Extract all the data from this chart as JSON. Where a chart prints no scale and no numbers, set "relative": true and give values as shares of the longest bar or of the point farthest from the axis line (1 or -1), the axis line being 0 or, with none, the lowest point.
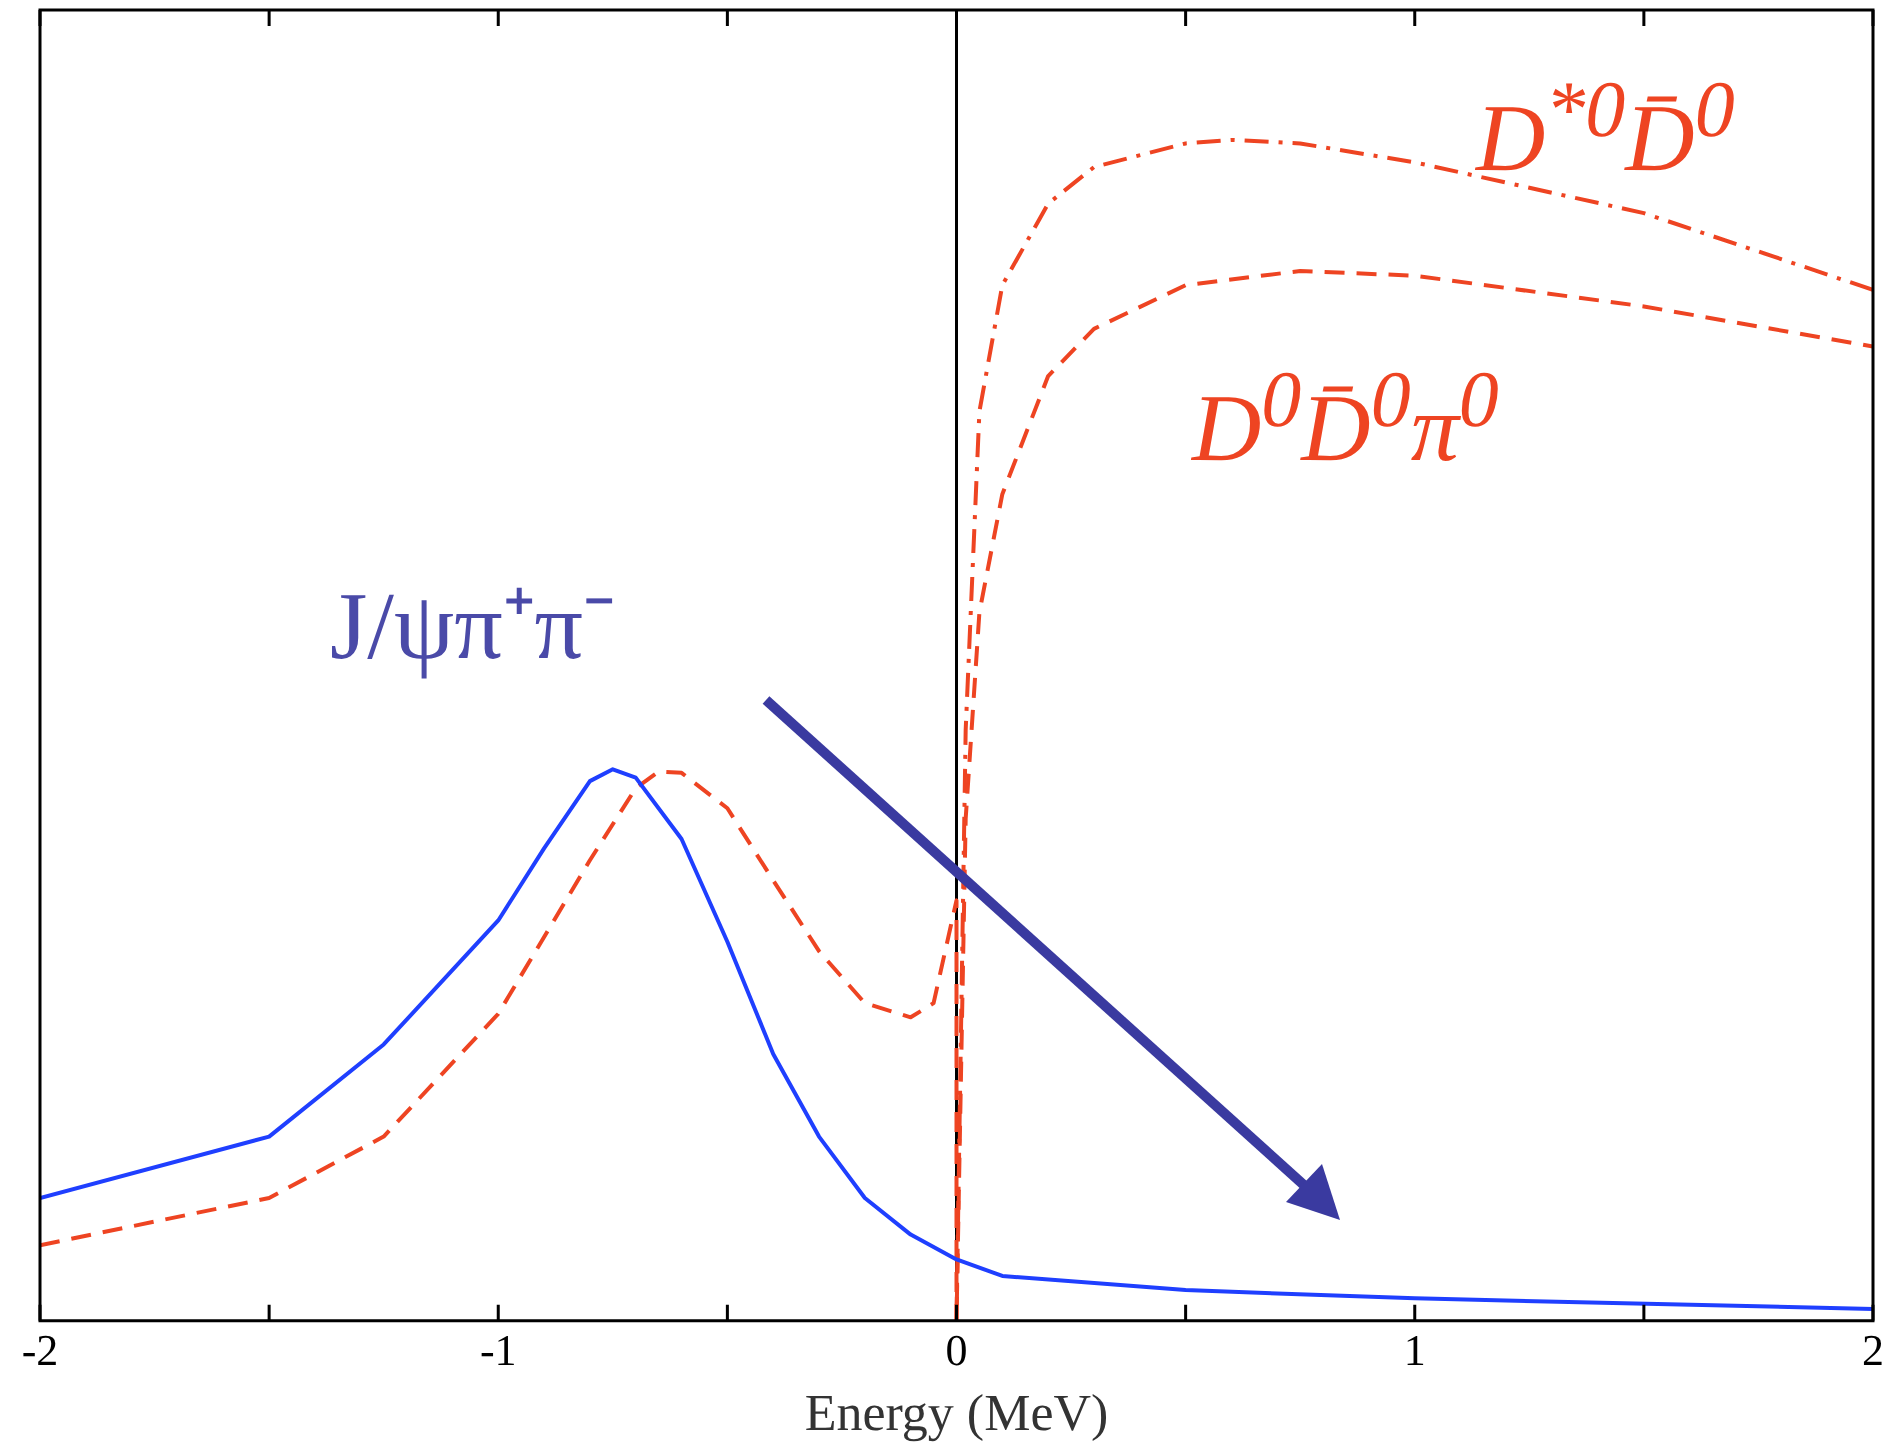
{
  "chart_data": {
    "type": "line",
    "relative": true,
    "xlabel": "Energy (MeV)",
    "xlim": [
      -2,
      2
    ],
    "xticks": [
      -2,
      {
        "value": -1.5,
        "label": null
      },
      -1,
      {
        "value": -0.5,
        "label": null
      },
      0,
      {
        "value": 0.5,
        "label": null
      },
      1,
      {
        "value": 1.5,
        "label": null
      },
      2
    ],
    "grid": false,
    "legend": false,
    "marker": "none",
    "ref_lines": [
      {
        "axis": "x",
        "value": 0,
        "color": "#000000"
      }
    ],
    "series": [
      {
        "name": "J/ψπ⁺π⁻",
        "color": "#1f3fff",
        "line_style": "solid",
        "x": [
          -2,
          -1.5,
          -1.25,
          -1,
          -0.9,
          -0.8,
          -0.75,
          -0.7,
          -0.6,
          -0.5,
          -0.4,
          -0.3,
          -0.2,
          -0.1,
          0,
          0.1,
          0.5,
          1,
          2
        ],
        "values": [
          0.104,
          0.156,
          0.234,
          0.339,
          0.4,
          0.457,
          0.467,
          0.46,
          0.408,
          0.321,
          0.226,
          0.156,
          0.104,
          0.073,
          0.052,
          0.038,
          0.026,
          0.019,
          0.01
        ]
      },
      {
        "name": "D$^{0}$D̄$^{0}$π$^{0}$",
        "color": "#ee4422",
        "line_style": "dashed",
        "x": [
          -2,
          -1.5,
          -1.25,
          -1,
          -0.8,
          -0.7,
          -0.65,
          -0.6,
          -0.5,
          -0.4,
          -0.3,
          -0.2,
          -0.1,
          -0.05,
          0,
          0,
          0.02,
          0.05,
          0.1,
          0.2,
          0.3,
          0.5,
          0.75,
          1,
          1.5,
          2
        ],
        "values": [
          0.064,
          0.104,
          0.156,
          0.26,
          0.39,
          0.451,
          0.465,
          0.464,
          0.434,
          0.373,
          0.313,
          0.269,
          0.257,
          0.269,
          0.356,
          0,
          0.425,
          0.6,
          0.7,
          0.8,
          0.84,
          0.877,
          0.889,
          0.885,
          0.859,
          0.825
        ]
      },
      {
        "name": "D$^{*0}$D̄$^{0}$",
        "color": "#ee4422",
        "line_style": "dashdot",
        "x": [
          0,
          0.02,
          0.05,
          0.1,
          0.2,
          0.3,
          0.5,
          0.6,
          0.75,
          1,
          1.5,
          2
        ],
        "values": [
          0,
          0.5,
          0.77,
          0.877,
          0.946,
          0.977,
          0.997,
          1,
          0.997,
          0.981,
          0.938,
          0.873
        ]
      }
    ]
  }
}
